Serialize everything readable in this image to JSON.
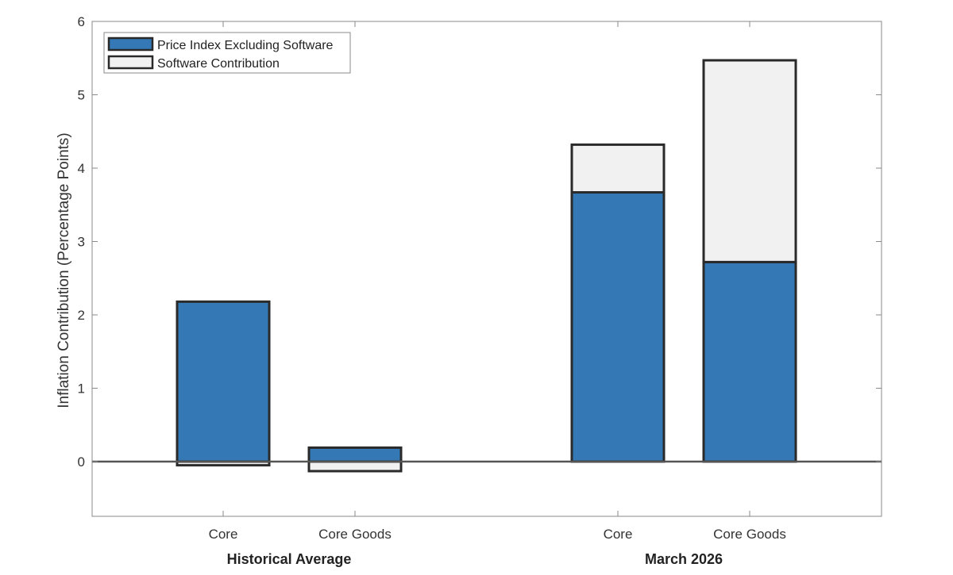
{
  "chart_data": {
    "type": "bar",
    "stacked": true,
    "ylabel": "Inflation Contribution (Percentage Points)",
    "ylim": [
      -0.75,
      6
    ],
    "yticks": [
      0,
      1,
      2,
      3,
      4,
      5,
      6
    ],
    "grid": false,
    "legend_position": "top-left",
    "groups": [
      {
        "label": "Historical Average",
        "categories": [
          "Core",
          "Core Goods"
        ]
      },
      {
        "label": "March 2026",
        "categories": [
          "Core",
          "Core Goods"
        ]
      }
    ],
    "categories": [
      "Core",
      "Core Goods",
      "Core",
      "Core Goods"
    ],
    "series": [
      {
        "name": "Price Index Excluding Software",
        "color": "#3478b5",
        "values": [
          2.18,
          0.19,
          3.67,
          2.72
        ]
      },
      {
        "name": "Software Contribution",
        "color": "#f0f1f0",
        "values": [
          -0.05,
          -0.13,
          0.65,
          2.75
        ]
      }
    ]
  }
}
